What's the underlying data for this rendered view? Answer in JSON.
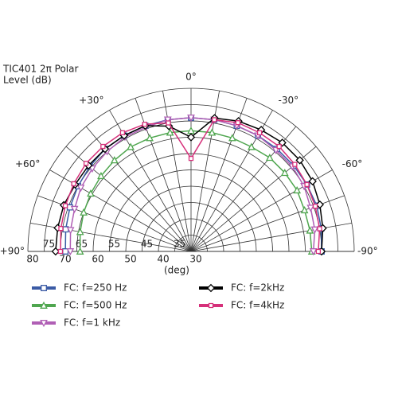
{
  "chart_data": {
    "type": "polar",
    "title": "TIC401 2π Polar",
    "subtitle": "Level  (dB)",
    "r_axis_unit": "(deg)",
    "rlim": [
      30,
      80
    ],
    "rticks": [
      80,
      70,
      60,
      50,
      40,
      30
    ],
    "rticks_inner": [
      75,
      65,
      55,
      45,
      35
    ],
    "rgrid": [
      35,
      40,
      45,
      50,
      55,
      60,
      65,
      70,
      75,
      80
    ],
    "thetalim": [
      -90,
      90
    ],
    "thetagrid": [
      -80,
      -70,
      -60,
      -50,
      -40,
      -30,
      -20,
      -10,
      0,
      10,
      20,
      30,
      40,
      50,
      60,
      70,
      80
    ],
    "thetaticks": [
      {
        "value": 90,
        "label": "+90°"
      },
      {
        "value": 60,
        "label": "+60°"
      },
      {
        "value": 30,
        "label": "+30°"
      },
      {
        "value": 0,
        "label": "0°"
      },
      {
        "value": -30,
        "label": "-30°"
      },
      {
        "value": -60,
        "label": "-60°"
      },
      {
        "value": -90,
        "label": "-90°"
      }
    ],
    "x": [
      -90,
      -80,
      -70,
      -60,
      -50,
      -40,
      -30,
      -20,
      -10,
      0,
      10,
      20,
      30,
      40,
      50,
      60,
      70,
      80,
      90
    ],
    "series": [
      {
        "name": "FC: f=250 Hz",
        "color": "#3b5ba5",
        "marker": "square",
        "values": [
          70,
          70.5,
          71,
          71,
          71,
          71,
          71,
          71,
          71,
          71,
          71,
          71,
          71,
          71,
          70.5,
          70,
          69.5,
          69,
          68.5
        ]
      },
      {
        "name": "FC: f=500 Hz",
        "color": "#4fa64f",
        "marker": "triangle-up",
        "values": [
          67,
          67,
          67,
          67.5,
          67.5,
          67.5,
          67,
          67,
          67,
          67,
          67,
          67,
          67,
          66.5,
          66,
          65.5,
          65,
          64.5,
          64
        ]
      },
      {
        "name": "FC: f=1 kHz",
        "color": "#b05fb5",
        "marker": "triangle-down",
        "values": [
          67.5,
          68.5,
          69,
          70,
          70.5,
          70.5,
          71,
          71,
          71,
          71,
          71,
          70.5,
          70.5,
          70,
          69.5,
          69,
          68,
          67.5,
          67
        ]
      },
      {
        "name": "FC: f=2kHz",
        "color": "#000000",
        "marker": "diamond",
        "values": [
          70,
          71,
          72,
          73,
          73.5,
          73.5,
          73,
          72.5,
          71.5,
          65,
          69,
          71,
          71,
          71,
          71,
          71,
          71.5,
          71.5,
          71.5
        ]
      },
      {
        "name": "FC: f=4kHz",
        "color": "#d6307a",
        "marker": "small-square",
        "values": [
          69,
          70,
          70.5,
          71,
          71.5,
          72,
          72,
          72,
          71,
          58.5,
          70,
          71.5,
          72,
          72,
          72,
          71.5,
          71,
          70.5,
          70
        ]
      }
    ]
  }
}
